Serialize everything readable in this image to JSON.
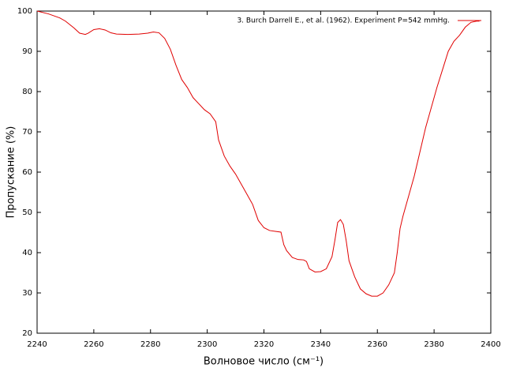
{
  "chart_data": {
    "type": "line",
    "xlabel": "Волновое число (см⁻¹)",
    "ylabel": "Пропускание (%)",
    "xlim": [
      2240,
      2400
    ],
    "ylim": [
      20,
      100
    ],
    "xticks": [
      2240,
      2260,
      2280,
      2300,
      2320,
      2340,
      2360,
      2380,
      2400
    ],
    "yticks": [
      20,
      30,
      40,
      50,
      60,
      70,
      80,
      90,
      100
    ],
    "legend": "top-right",
    "x": [
      2240,
      2244,
      2248,
      2250,
      2253,
      2255,
      2257,
      2258,
      2260,
      2262,
      2264,
      2266,
      2268,
      2272,
      2276,
      2279,
      2281,
      2283,
      2285,
      2287,
      2289,
      2291,
      2293,
      2295,
      2297,
      2299,
      2301,
      2303,
      2304,
      2306,
      2308,
      2310,
      2312,
      2314,
      2316,
      2318,
      2320,
      2322,
      2324,
      2326,
      2327,
      2328,
      2330,
      2332,
      2334,
      2335,
      2336,
      2338,
      2340,
      2342,
      2344,
      2345,
      2346,
      2347,
      2348,
      2349,
      2350,
      2352,
      2354,
      2356,
      2358,
      2360,
      2362,
      2364,
      2366,
      2367,
      2368,
      2369,
      2371,
      2373,
      2375,
      2377,
      2379,
      2381,
      2383,
      2385,
      2387,
      2389,
      2391,
      2393,
      2395,
      2396
    ],
    "series": [
      {
        "name": "3. Burch Darrell E., et al. (1962). Experiment P=542 mmHg.",
        "color": "#e00000",
        "values": [
          100,
          99.3,
          98.3,
          97.5,
          95.8,
          94.5,
          94.2,
          94.5,
          95.4,
          95.6,
          95.3,
          94.6,
          94.3,
          94.2,
          94.3,
          94.5,
          94.8,
          94.6,
          93.2,
          90.5,
          86.5,
          83,
          81,
          78.5,
          77,
          75.5,
          74.5,
          72.5,
          68,
          64,
          61.5,
          59.5,
          57,
          54.5,
          52,
          48,
          46.2,
          45.5,
          45.3,
          45.1,
          42,
          40.5,
          38.8,
          38.3,
          38.2,
          37.8,
          36,
          35.2,
          35.3,
          36,
          39,
          43,
          47.5,
          48.2,
          47,
          43,
          38,
          34,
          31,
          29.8,
          29.2,
          29.2,
          30,
          32,
          35,
          40,
          46,
          49,
          54,
          59,
          65,
          71,
          76,
          81,
          85.5,
          90,
          92.5,
          94,
          96,
          97.2,
          97.5,
          97.5
        ]
      }
    ]
  }
}
